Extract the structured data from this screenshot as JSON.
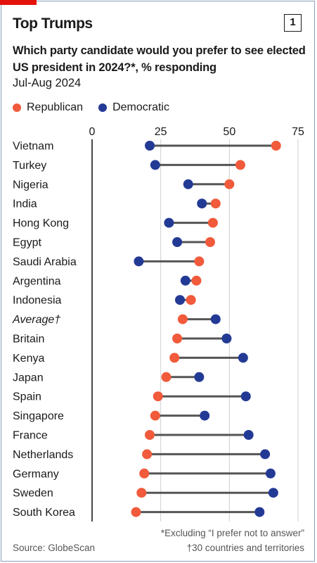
{
  "header": {
    "title": "Top Trumps",
    "badge": "1",
    "subtitle": "Which party candidate would you prefer to see elected US president in 2024?*, % responding",
    "period": "Jul-Aug 2024"
  },
  "legend": {
    "republican": "Republican",
    "democratic": "Democratic"
  },
  "colors": {
    "republican": "#f15a3a",
    "democratic": "#233a95",
    "connector": "#555555",
    "axis": "#1a1a1a",
    "grid": "#cfcfcf"
  },
  "chart_data": {
    "type": "dot-plot",
    "xlim": [
      0,
      75
    ],
    "xticks": [
      "0",
      "25",
      "50",
      "75"
    ],
    "grid": true,
    "legend_position": "top-left",
    "categories": [
      "Vietnam",
      "Turkey",
      "Nigeria",
      "India",
      "Hong Kong",
      "Egypt",
      "Saudi Arabia",
      "Argentina",
      "Indonesia",
      "Average†",
      "Britain",
      "Kenya",
      "Japan",
      "Spain",
      "Singapore",
      "France",
      "Netherlands",
      "Germany",
      "Sweden",
      "South Korea"
    ],
    "italic_category": "Average†",
    "series": [
      {
        "name": "Republican",
        "values": [
          67,
          54,
          50,
          45,
          44,
          43,
          39,
          38,
          36,
          33,
          31,
          30,
          27,
          24,
          23,
          21,
          20,
          19,
          18,
          16
        ]
      },
      {
        "name": "Democratic",
        "values": [
          21,
          23,
          35,
          40,
          28,
          31,
          17,
          34,
          32,
          45,
          49,
          55,
          39,
          56,
          41,
          57,
          63,
          65,
          66,
          61
        ]
      }
    ]
  },
  "footer": {
    "note1": "*Excluding “I prefer not to answer”",
    "note2": "†30 countries and territories",
    "source": "Source: GlobeScan"
  }
}
